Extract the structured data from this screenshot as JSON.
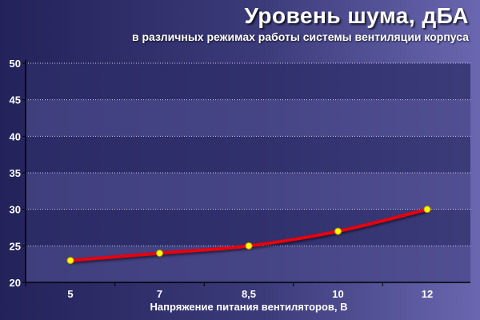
{
  "chart_data": {
    "type": "line",
    "title": "Уровень шума, дБА",
    "subtitle": "в различных режимах работы системы вентиляции корпуса",
    "xlabel": "Напряжение питания вентиляторов, В",
    "ylabel": "",
    "categories": [
      "5",
      "7",
      "8,5",
      "10",
      "12"
    ],
    "series": [
      {
        "values": [
          23,
          24,
          25,
          27,
          30
        ]
      }
    ],
    "ylim": [
      20,
      50
    ],
    "yticks": [
      20,
      25,
      30,
      35,
      40,
      45,
      50
    ],
    "grid": true,
    "legend": "none",
    "colors": {
      "line": "#e8000b",
      "marker_fill": "#ffff00",
      "marker_stroke": "#c89000",
      "band_dark": "#2e2d6a",
      "band_light": "#4a4889",
      "grid": "#c8c8e0"
    }
  }
}
